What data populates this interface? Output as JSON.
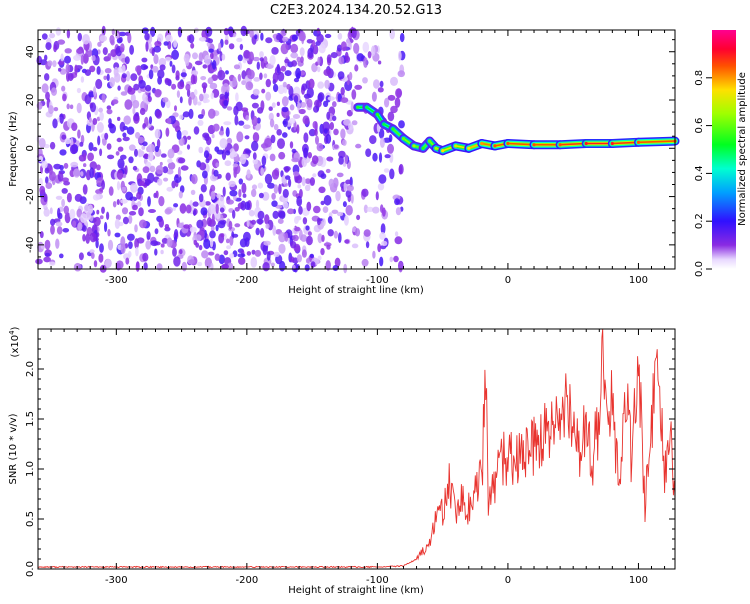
{
  "title": "C2E3.2024.134.20.52.G13",
  "chart_data": [
    {
      "type": "heatmap",
      "xlabel": "Height of straight line (km)",
      "ylabel": "Frequency (Hz)",
      "xlim": [
        -360,
        128
      ],
      "ylim": [
        -50,
        49
      ],
      "xticks": [
        -300,
        -200,
        -100,
        0,
        100
      ],
      "yticks": [
        -40,
        -20,
        0,
        20,
        40
      ],
      "grid": false,
      "colorbar": {
        "label": "Normalized spectral amplitude",
        "range": [
          0,
          1
        ],
        "ticks": [
          0.0,
          0.2,
          0.4,
          0.6,
          0.8
        ],
        "colormap": "rainbow (white, purple, blue, cyan, green, yellow, red, pink)"
      },
      "noise_region_x": [
        -360,
        -80
      ],
      "signal_track": {
        "x": [
          -115,
          -108,
          -100,
          -95,
          -88,
          -80,
          -72,
          -65,
          -60,
          -55,
          -50,
          -40,
          -30,
          -20,
          -10,
          0,
          20,
          40,
          60,
          80,
          100,
          128
        ],
        "y": [
          17,
          17,
          14,
          10,
          8,
          4,
          1,
          0,
          3,
          0,
          -1,
          1,
          0,
          2,
          1,
          2,
          1.5,
          1.5,
          2,
          2,
          2.5,
          3
        ],
        "peak_amplitude": [
          0.55,
          0.5,
          0.55,
          0.5,
          0.55,
          0.6,
          0.65,
          0.55,
          0.6,
          0.65,
          0.75,
          0.7,
          0.75,
          0.8,
          0.85,
          0.85,
          0.85,
          0.85,
          0.9,
          0.9,
          0.85,
          0.85
        ]
      }
    },
    {
      "type": "line",
      "xlabel": "Height of straight line (km)",
      "ylabel": "SNR (10 * v/v)",
      "y_multiplier": "(x10",
      "y_multiplier_exp": "4",
      "y_multiplier_close": ")",
      "xlim": [
        -360,
        128
      ],
      "ylim": [
        0,
        2.4
      ],
      "xticks": [
        -300,
        -200,
        -100,
        0,
        100
      ],
      "yticks": [
        0.0,
        0.5,
        1.0,
        1.5,
        2.0
      ],
      "color": "#e8332e",
      "series": [
        {
          "x": [
            -360,
            -300,
            -200,
            -100,
            -80,
            -70,
            -60,
            -55,
            -50,
            -45,
            -40,
            -35,
            -30,
            -25,
            -20,
            -17,
            -15,
            -10,
            -5,
            0,
            5,
            10,
            20,
            30,
            40,
            45,
            50,
            55,
            60,
            65,
            70,
            72,
            75,
            80,
            85,
            90,
            95,
            100,
            105,
            110,
            115,
            120,
            125,
            128
          ],
          "y": [
            0.02,
            0.02,
            0.02,
            0.02,
            0.03,
            0.1,
            0.25,
            0.5,
            0.6,
            0.85,
            0.5,
            0.7,
            0.6,
            0.8,
            0.9,
            1.9,
            0.6,
            0.9,
            1.1,
            1.05,
            1.15,
            1.1,
            1.2,
            1.35,
            1.45,
            1.65,
            1.4,
            1.25,
            1.35,
            1.15,
            1.5,
            2.4,
            1.5,
            1.7,
            0.9,
            1.75,
            1.1,
            2.1,
            0.6,
            1.5,
            1.95,
            0.9,
            1.2,
            0.7
          ]
        }
      ]
    }
  ]
}
